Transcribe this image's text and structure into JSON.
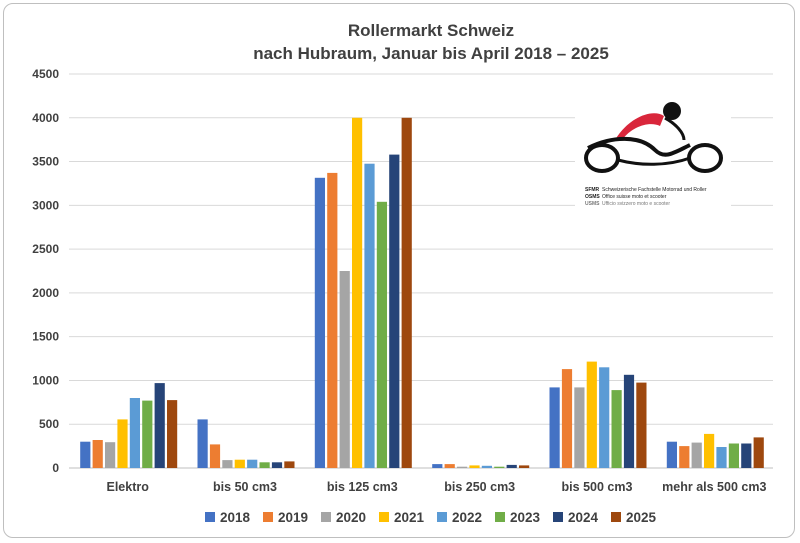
{
  "chart_data": {
    "type": "bar",
    "title": "Rollermarkt Schweiz",
    "subtitle": "nach Hubraum, Januar bis April 2018 – 2025",
    "xlabel": "",
    "ylabel": "",
    "ylim": [
      0,
      4500
    ],
    "yticks": [
      "0",
      "500",
      "1000",
      "1500",
      "2000",
      "2500",
      "3000",
      "3500",
      "4000",
      "4500"
    ],
    "grid": true,
    "legend_position": "bottom",
    "categories": [
      "Elektro",
      "bis 50 cm3",
      "bis 125 cm3",
      "bis 250 cm3",
      "bis 500 cm3",
      "mehr als 500 cm3"
    ],
    "series": [
      {
        "name": "2018",
        "color": "#4472c4",
        "values": [
          300,
          555,
          3315,
          45,
          920,
          300
        ]
      },
      {
        "name": "2019",
        "color": "#ed7d31",
        "values": [
          320,
          270,
          3370,
          45,
          1130,
          250
        ]
      },
      {
        "name": "2020",
        "color": "#a5a5a5",
        "values": [
          295,
          90,
          2250,
          15,
          920,
          290
        ]
      },
      {
        "name": "2021",
        "color": "#ffc000",
        "values": [
          555,
          95,
          4000,
          30,
          1215,
          390
        ]
      },
      {
        "name": "2022",
        "color": "#5b9bd5",
        "values": [
          800,
          95,
          3475,
          25,
          1150,
          240
        ]
      },
      {
        "name": "2023",
        "color": "#70ad47",
        "values": [
          770,
          65,
          3040,
          15,
          890,
          280
        ]
      },
      {
        "name": "2024",
        "color": "#264478",
        "values": [
          970,
          65,
          3580,
          35,
          1065,
          280
        ]
      },
      {
        "name": "2025",
        "color": "#9e480e",
        "values": [
          775,
          75,
          4000,
          30,
          975,
          350
        ]
      }
    ]
  },
  "logo": {
    "line1_abbr": "SFMR",
    "line1_text": "Schweizerische Fachstelle Motorrad und Roller",
    "line2_abbr": "OSMS",
    "line2_text": "Office suisse moto et scooter",
    "line3_abbr": "USMS",
    "line3_text": "Ufficio svizzero moto e scooter"
  }
}
